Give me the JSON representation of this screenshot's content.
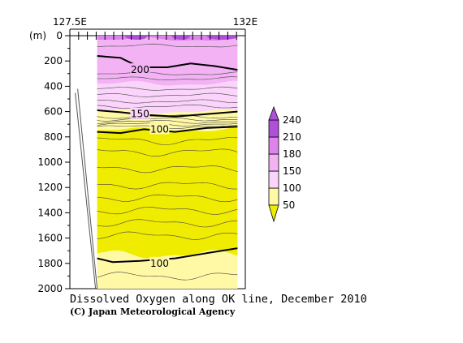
{
  "chart_data": {
    "type": "heatmap",
    "title": "Dissolved Oxygen along OK line, December 2010",
    "credit": "(C) Japan Meteorological Agency",
    "x_axis": {
      "range": [
        127.5,
        132
      ],
      "tick_labels": [
        "127.5E",
        "132E"
      ],
      "minor_ticks": 20
    },
    "y_axis": {
      "unit_label": "(m)",
      "range": [
        0,
        2000
      ],
      "inverted": true,
      "ticks": [
        0,
        200,
        400,
        600,
        800,
        1000,
        1200,
        1400,
        1600,
        1800,
        2000
      ],
      "tick_labels": [
        "0",
        "200",
        "400",
        "600",
        "800",
        "1000",
        "1200",
        "1400",
        "1600",
        "1800",
        "2000"
      ]
    },
    "data_extent": {
      "lon_range": [
        128.2,
        131.8
      ],
      "shelf_edge": [
        [
          127.7,
          420
        ],
        [
          128.2,
          2000
        ]
      ]
    },
    "colorbar": {
      "levels": [
        50,
        100,
        150,
        180,
        210,
        240
      ],
      "labels": [
        "50",
        "100",
        "150",
        "180",
        "210",
        "240"
      ],
      "colors": [
        "#f0ec00",
        "#fff9a6",
        "#fbd4fb",
        "#f2b2f3",
        "#dc84ec",
        "#b050d8"
      ]
    },
    "bands": [
      {
        "min": 210,
        "max": 240,
        "color": "#b050d8",
        "region": "surface patches 0-30 m"
      },
      {
        "min": 180,
        "max": 210,
        "color": "#dc84ec",
        "region": "0-380 m"
      },
      {
        "min": 150,
        "max": 180,
        "color": "#f2b2f3",
        "region": "380-600 m"
      },
      {
        "min": 100,
        "max": 150,
        "color": "#fff9a6",
        "region": "600-740 m and below 1700 m"
      },
      {
        "min": 50,
        "max": 100,
        "color": "#f0ec00",
        "region": "740-1700 m"
      }
    ],
    "contour_labels": [
      {
        "text": "200",
        "lon": 129.3,
        "depth": 270
      },
      {
        "text": "150",
        "lon": 129.3,
        "depth": 620
      },
      {
        "text": "100",
        "lon": 129.8,
        "depth": 740
      },
      {
        "text": "100",
        "lon": 129.8,
        "depth": 1800
      }
    ],
    "main_contours": [
      {
        "value": 200,
        "points": [
          [
            128.2,
            160
          ],
          [
            128.8,
            175
          ],
          [
            129.3,
            250
          ],
          [
            130.0,
            250
          ],
          [
            130.6,
            220
          ],
          [
            131.2,
            240
          ],
          [
            131.8,
            270
          ]
        ]
      },
      {
        "value": 150,
        "points": [
          [
            128.2,
            590
          ],
          [
            128.8,
            605
          ],
          [
            129.4,
            625
          ],
          [
            130.2,
            640
          ],
          [
            131.0,
            620
          ],
          [
            131.8,
            600
          ]
        ]
      },
      {
        "value": 100,
        "points": [
          [
            128.2,
            760
          ],
          [
            128.8,
            770
          ],
          [
            129.4,
            740
          ],
          [
            130.2,
            760
          ],
          [
            131.0,
            730
          ],
          [
            131.8,
            720
          ]
        ]
      },
      {
        "value": 100,
        "points": [
          [
            128.2,
            1760
          ],
          [
            128.6,
            1790
          ],
          [
            129.3,
            1780
          ],
          [
            130.2,
            1760
          ],
          [
            131.0,
            1720
          ],
          [
            131.8,
            1680
          ]
        ]
      }
    ]
  }
}
